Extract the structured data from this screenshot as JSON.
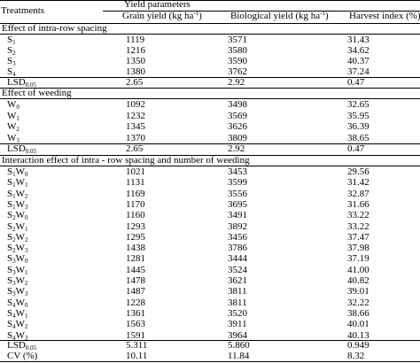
{
  "header": {
    "treatments": "Treatments",
    "yield_parameters": "Yield parameters",
    "grain_yield": "Grain yield",
    "grain_unit": "(kg ha",
    "bio_yield": "Biological yield",
    "bio_unit": "(kg ha",
    "unit_exp": "-1",
    "unit_close": ")",
    "harvest_index": "Harvest index (%)"
  },
  "sections": {
    "spacing": "Effect of intra-row spacing",
    "weeding": "Effect of weeding",
    "interaction": "Interaction effect of intra - row spacing and number of weeding"
  },
  "spacing_rows": [
    {
      "base": "S",
      "sub": "1",
      "grain": "1119",
      "bio": "3571",
      "hi": "31.43"
    },
    {
      "base": "S",
      "sub": "2",
      "grain": "1216",
      "bio": "3580",
      "hi": "34.62"
    },
    {
      "base": "S",
      "sub": "3",
      "grain": "1350",
      "bio": "3590",
      "hi": "40.37"
    },
    {
      "base": "S",
      "sub": "4",
      "grain": "1380",
      "bio": "3762",
      "hi": "37.24"
    }
  ],
  "spacing_lsd": {
    "label": "LSD",
    "sub": "0.05",
    "grain": "2.65",
    "bio": "2.92",
    "hi": "0.47"
  },
  "weeding_rows": [
    {
      "base": "W",
      "sub": "0",
      "grain": "1092",
      "bio": "3498",
      "hi": "32.65"
    },
    {
      "base": "W",
      "sub": "1",
      "grain": "1232",
      "bio": "3569",
      "hi": "35.95"
    },
    {
      "base": "W",
      "sub": "2",
      "grain": "1345",
      "bio": "3626",
      "hi": "36.39"
    },
    {
      "base": "W",
      "sub": "3",
      "grain": "1370",
      "bio": "3809",
      "hi": "38.65"
    }
  ],
  "weeding_lsd": {
    "label": "LSD",
    "sub": "0.05",
    "grain": "2.65",
    "bio": "2.92",
    "hi": "0.47"
  },
  "interaction_rows": [
    {
      "s": "1",
      "w": "0",
      "grain": "1021",
      "bio": "3453",
      "hi": "29.56"
    },
    {
      "s": "1",
      "w": "1",
      "grain": "1131",
      "bio": "3599",
      "hi": "31.42"
    },
    {
      "s": "1",
      "w": "2",
      "grain": "1169",
      "bio": "3556",
      "hi": "32.87"
    },
    {
      "s": "1",
      "w": "3",
      "grain": "1170",
      "bio": "3695",
      "hi": "31.66"
    },
    {
      "s": "2",
      "w": "0",
      "grain": "1160",
      "bio": "3491",
      "hi": "33.22"
    },
    {
      "s": "2",
      "w": "1",
      "grain": "1293",
      "bio": "3892",
      "hi": "33.22"
    },
    {
      "s": "2",
      "w": "2",
      "grain": "1295",
      "bio": "3456",
      "hi": "37.47"
    },
    {
      "s": "2",
      "w": "3",
      "grain": "1438",
      "bio": "3786",
      "hi": "37.98"
    },
    {
      "s": "3",
      "w": "0",
      "grain": "1281",
      "bio": "3444",
      "hi": "37.19"
    },
    {
      "s": "3",
      "w": "1",
      "grain": "1445",
      "bio": "3524",
      "hi": "41.00"
    },
    {
      "s": "3",
      "w": "2",
      "grain": "1478",
      "bio": "3621",
      "hi": "40.82"
    },
    {
      "s": "3",
      "w": "3",
      "grain": "1487",
      "bio": "3811",
      "hi": "39.01"
    },
    {
      "s": "4",
      "w": "0",
      "grain": "1228",
      "bio": "3811",
      "hi": "32.22"
    },
    {
      "s": "4",
      "w": "1",
      "grain": "1361",
      "bio": "3520",
      "hi": "38.66"
    },
    {
      "s": "4",
      "w": "2",
      "grain": "1563",
      "bio": "3911",
      "hi": "40.01"
    },
    {
      "s": "4",
      "w": "3",
      "grain": "1591",
      "bio": "3964",
      "hi": "40.13"
    }
  ],
  "interaction_lsd": {
    "label": "LSD",
    "sub": "0.05",
    "grain": "5.311",
    "bio": "5.860",
    "hi": "0.949"
  },
  "cv": {
    "label": "CV (%)",
    "grain": "10.11",
    "bio": "11.84",
    "hi": "8.32"
  }
}
